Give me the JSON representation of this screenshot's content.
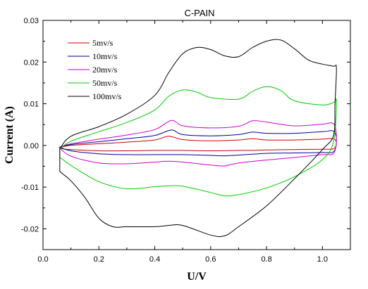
{
  "chart_data": {
    "type": "line",
    "title": "C-PAIN",
    "xlabel": "U/V",
    "ylabel": "Current (A)",
    "xlim": [
      0.0,
      1.1
    ],
    "ylim": [
      -0.025,
      0.03
    ],
    "xticks": [
      0.0,
      0.2,
      0.4,
      0.6,
      0.8,
      1.0
    ],
    "xtick_labels": [
      "0.0",
      "0.2",
      "0.4",
      "0.6",
      "0.8",
      "1.0"
    ],
    "yticks": [
      -0.02,
      -0.01,
      0.0,
      0.01,
      0.02,
      0.03
    ],
    "ytick_labels": [
      "-0.02",
      "-0.01",
      "0.00",
      "0.01",
      "0.02",
      "0.03"
    ],
    "grid": false,
    "legend_position": "top-left",
    "series": [
      {
        "name": "5mv/s",
        "color": "#cc0000",
        "x": [
          0.06,
          0.1,
          0.2,
          0.3,
          0.4,
          0.45,
          0.5,
          0.6,
          0.7,
          0.75,
          0.8,
          0.9,
          1.0,
          1.04,
          1.05,
          1.04,
          1.0,
          0.9,
          0.8,
          0.75,
          0.7,
          0.6,
          0.5,
          0.45,
          0.4,
          0.3,
          0.2,
          0.1,
          0.07,
          0.06
        ],
        "y": [
          -0.0005,
          0.0,
          0.0004,
          0.0008,
          0.0013,
          0.0022,
          0.0014,
          0.0011,
          0.0013,
          0.0016,
          0.0013,
          0.0013,
          0.0015,
          0.0016,
          0.0005,
          -0.0008,
          -0.0009,
          -0.001,
          -0.0011,
          -0.0012,
          -0.0012,
          -0.0013,
          -0.0012,
          -0.0012,
          -0.0012,
          -0.0013,
          -0.0013,
          -0.001,
          -0.0008,
          -0.0005
        ]
      },
      {
        "name": "10mv/s",
        "color": "#000099",
        "x": [
          0.06,
          0.1,
          0.2,
          0.3,
          0.4,
          0.46,
          0.5,
          0.6,
          0.7,
          0.75,
          0.8,
          0.9,
          1.0,
          1.04,
          1.05,
          1.04,
          1.0,
          0.9,
          0.8,
          0.75,
          0.7,
          0.65,
          0.6,
          0.5,
          0.45,
          0.4,
          0.3,
          0.2,
          0.1,
          0.06
        ],
        "y": [
          -0.0004,
          0.0002,
          0.0009,
          0.0016,
          0.0024,
          0.0037,
          0.0026,
          0.0023,
          0.0026,
          0.0032,
          0.0029,
          0.0029,
          0.0033,
          0.0034,
          0.0012,
          -0.0015,
          -0.0017,
          -0.0018,
          -0.0019,
          -0.0021,
          -0.0023,
          -0.0025,
          -0.0024,
          -0.0022,
          -0.0022,
          -0.0022,
          -0.0022,
          -0.002,
          -0.0013,
          -0.0004
        ]
      },
      {
        "name": "20mv/s",
        "color": "#cc00cc",
        "x": [
          0.06,
          0.1,
          0.2,
          0.3,
          0.4,
          0.46,
          0.5,
          0.6,
          0.7,
          0.75,
          0.8,
          0.9,
          1.0,
          1.04,
          1.05,
          1.04,
          1.0,
          0.9,
          0.8,
          0.7,
          0.65,
          0.6,
          0.5,
          0.45,
          0.4,
          0.3,
          0.2,
          0.1,
          0.06
        ],
        "y": [
          -0.0004,
          0.0004,
          0.0015,
          0.0025,
          0.0038,
          0.006,
          0.0047,
          0.0042,
          0.0046,
          0.0059,
          0.0056,
          0.0047,
          0.0051,
          0.0052,
          0.0018,
          -0.0019,
          -0.0022,
          -0.0029,
          -0.0035,
          -0.0042,
          -0.0049,
          -0.0047,
          -0.004,
          -0.0038,
          -0.004,
          -0.0044,
          -0.0042,
          -0.0026,
          -0.0006
        ]
      },
      {
        "name": "50mv/s",
        "color": "#00cc00",
        "x": [
          0.06,
          0.1,
          0.2,
          0.3,
          0.4,
          0.45,
          0.5,
          0.55,
          0.6,
          0.7,
          0.75,
          0.8,
          0.85,
          0.9,
          1.0,
          1.04,
          1.05,
          1.04,
          1.0,
          0.9,
          0.8,
          0.7,
          0.65,
          0.6,
          0.5,
          0.45,
          0.4,
          0.3,
          0.2,
          0.1,
          0.07,
          0.06
        ],
        "y": [
          -0.0008,
          0.001,
          0.0033,
          0.0055,
          0.0085,
          0.0118,
          0.0133,
          0.0128,
          0.0115,
          0.0111,
          0.013,
          0.0141,
          0.0132,
          0.0107,
          0.0097,
          0.0103,
          0.0105,
          0.001,
          -0.0034,
          -0.0075,
          -0.0102,
          -0.0118,
          -0.0121,
          -0.0113,
          -0.0098,
          -0.0097,
          -0.0099,
          -0.0104,
          -0.0087,
          -0.0048,
          -0.0033,
          -0.003
        ]
      },
      {
        "name": "100mv/s",
        "color": "#000000",
        "x": [
          0.06,
          0.1,
          0.2,
          0.3,
          0.4,
          0.45,
          0.5,
          0.55,
          0.6,
          0.65,
          0.7,
          0.75,
          0.8,
          0.85,
          0.9,
          0.95,
          1.0,
          1.04,
          1.05,
          1.045,
          1.04,
          1.0,
          0.9,
          0.8,
          0.7,
          0.65,
          0.6,
          0.5,
          0.45,
          0.4,
          0.3,
          0.25,
          0.2,
          0.15,
          0.1,
          0.07,
          0.06
        ],
        "y": [
          -0.0008,
          0.0022,
          0.0045,
          0.0075,
          0.012,
          0.0175,
          0.022,
          0.0235,
          0.023,
          0.0215,
          0.0213,
          0.0235,
          0.025,
          0.0253,
          0.0232,
          0.0205,
          0.0195,
          0.019,
          0.0185,
          0.01,
          0.0025,
          -0.001,
          -0.008,
          -0.0145,
          -0.0195,
          -0.0217,
          -0.0215,
          -0.0192,
          -0.0192,
          -0.0195,
          -0.0195,
          -0.0195,
          -0.0175,
          -0.0125,
          -0.0085,
          -0.0068,
          -0.0062
        ]
      }
    ]
  }
}
